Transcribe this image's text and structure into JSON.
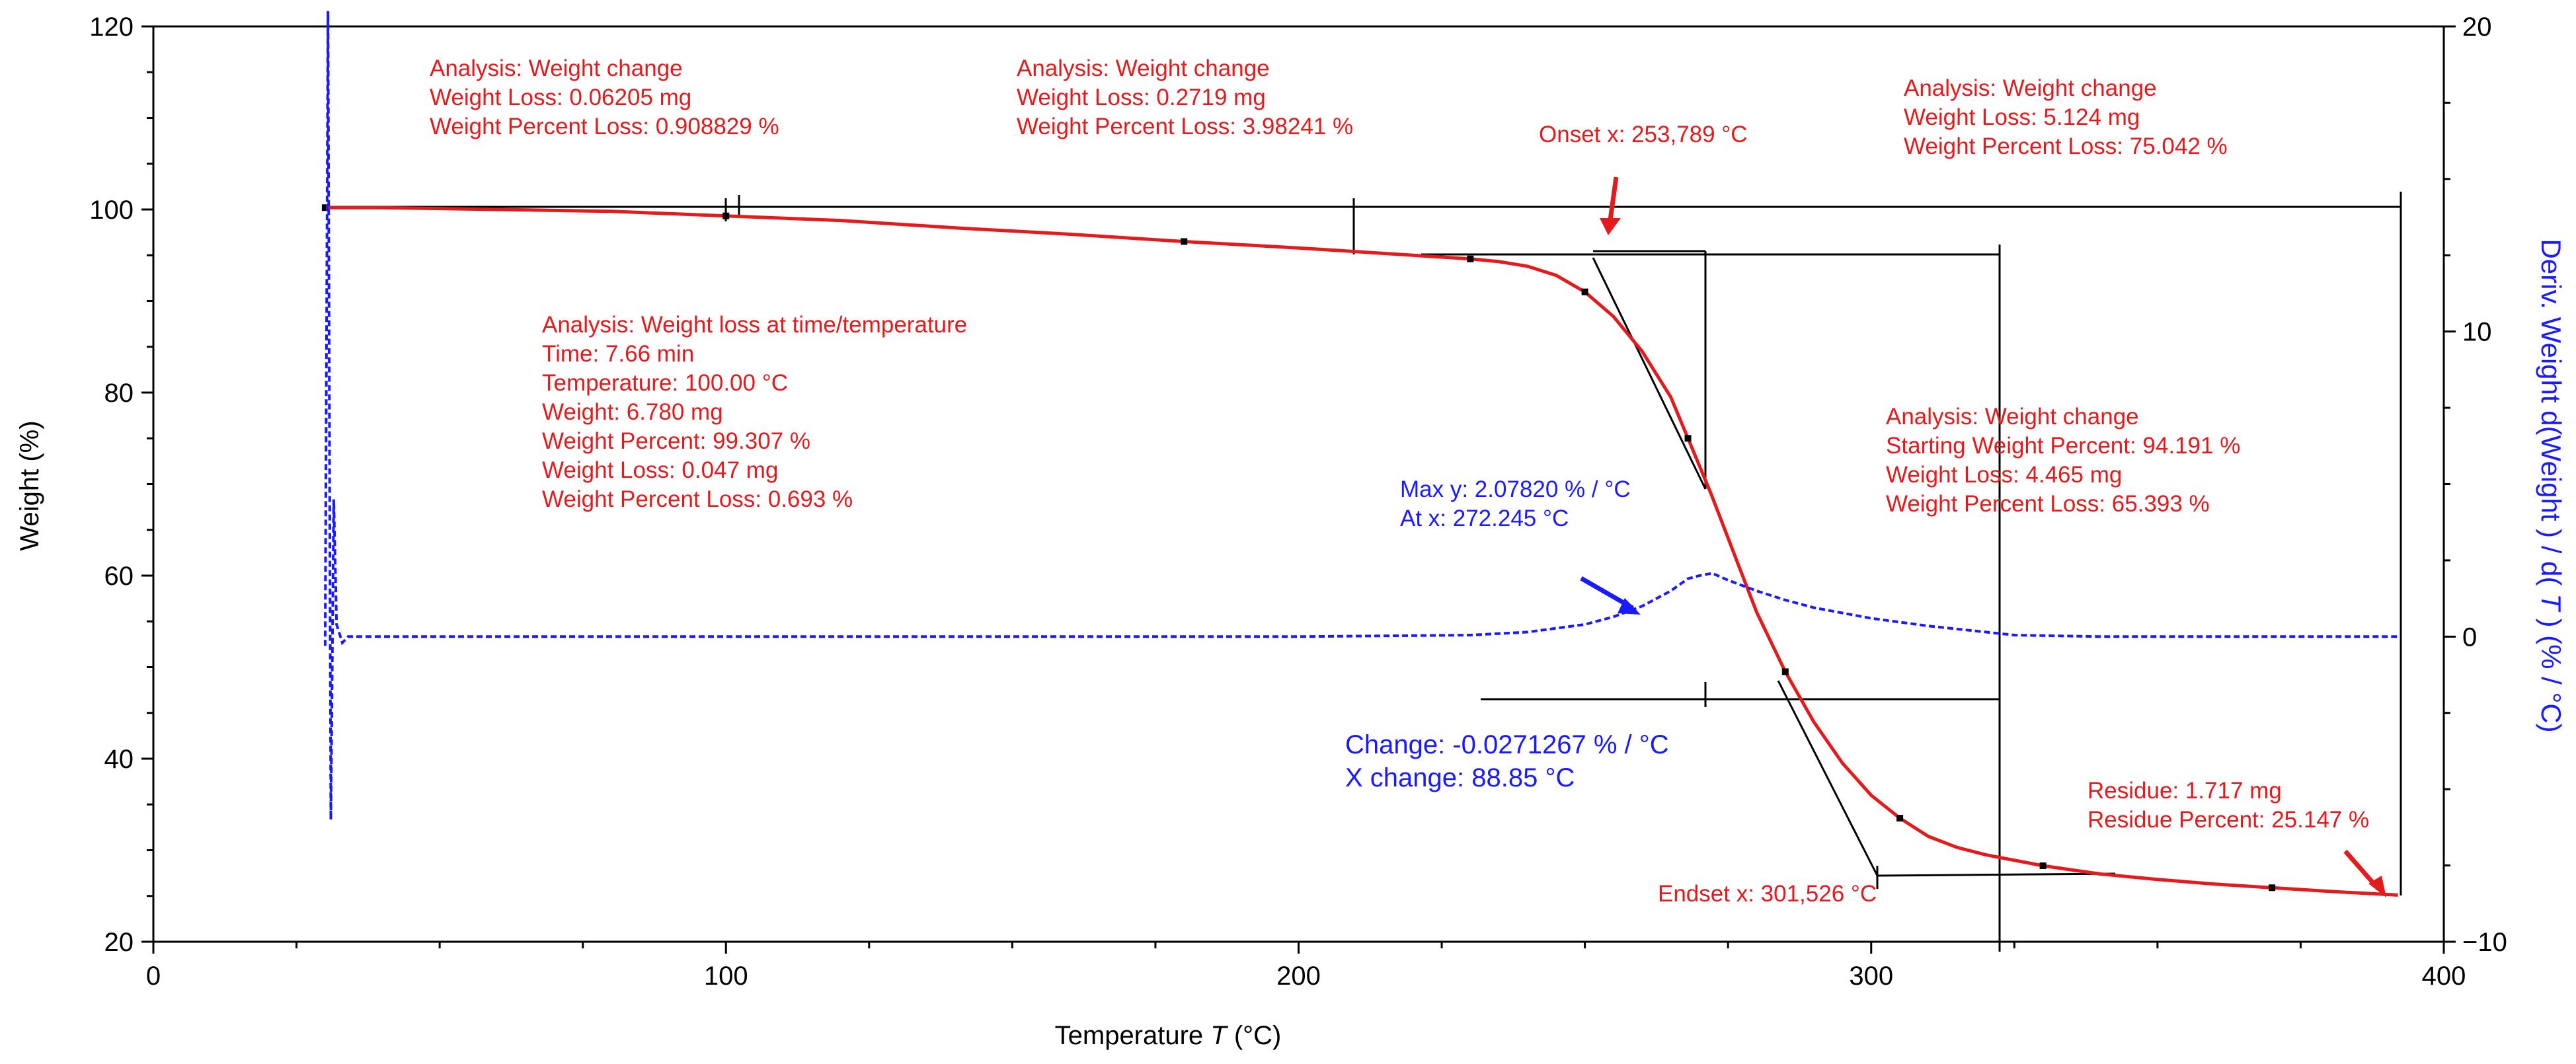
{
  "chart_data": {
    "type": "line",
    "title": "",
    "xlabel_prefix": "Temperature ",
    "xlabel_var": "T",
    "xlabel_suffix": " (°C)",
    "ylabel": "Weight (%)",
    "y2label_prefix": "Deriv. Weight d(Weight ) / d( ",
    "y2label_var": "T",
    "y2label_suffix": " ) (% / °C)",
    "xlim": [
      0,
      400
    ],
    "ylim": [
      20,
      120
    ],
    "y2lim": [
      -10,
      20
    ],
    "x_ticks": [
      "0",
      "100",
      "200",
      "300",
      "400"
    ],
    "y_ticks": [
      "20",
      "40",
      "60",
      "80",
      "100",
      "120"
    ],
    "y2_ticks": [
      "−10",
      "0",
      "10",
      "20"
    ],
    "colors": {
      "weight": "#e41a1c",
      "deriv": "#1a1aff",
      "construct": "#000000"
    },
    "series": [
      {
        "name": "Weight",
        "axis": "left",
        "x": [
          30,
          40,
          60,
          80,
          100,
          120,
          140,
          160,
          180,
          200,
          210,
          220,
          230,
          235,
          240,
          245,
          250,
          255,
          260,
          265,
          268,
          272,
          276,
          280,
          285,
          290,
          295,
          300,
          305,
          310,
          315,
          320,
          330,
          340,
          350,
          360,
          370,
          380,
          392
        ],
        "values": [
          100.2,
          100.2,
          100.0,
          99.8,
          99.3,
          98.8,
          98.0,
          97.3,
          96.5,
          95.8,
          95.4,
          95.0,
          94.6,
          94.3,
          93.8,
          92.8,
          91.0,
          88.3,
          84.5,
          79.5,
          75.0,
          69.0,
          62.5,
          56.0,
          49.5,
          44.0,
          39.5,
          36.0,
          33.5,
          31.5,
          30.3,
          29.5,
          28.3,
          27.4,
          26.8,
          26.3,
          25.9,
          25.5,
          25.1
        ]
      },
      {
        "name": "Deriv. Weight",
        "axis": "right",
        "x": [
          30,
          30.5,
          31,
          31.5,
          32,
          33,
          34,
          40,
          100,
          200,
          230,
          240,
          250,
          255,
          260,
          265,
          268,
          270,
          272.245,
          275,
          280,
          285,
          290,
          300,
          310,
          320,
          325,
          340,
          392
        ],
        "values": [
          -0.3,
          20.5,
          -6.0,
          4.5,
          0.4,
          -0.2,
          0,
          0,
          0,
          0,
          0.05,
          0.15,
          0.4,
          0.65,
          1.0,
          1.5,
          1.9,
          2.0,
          2.078,
          1.85,
          1.5,
          1.2,
          0.95,
          0.6,
          0.35,
          0.15,
          0.05,
          0,
          0
        ]
      }
    ],
    "annotations": [
      {
        "id": "wc1",
        "color": "red",
        "lines": [
          "Analysis: Weight change",
          "Weight Loss: 0.06205 mg",
          "Weight Percent Loss: 0.908829 %"
        ]
      },
      {
        "id": "wc2",
        "color": "red",
        "lines": [
          "Analysis: Weight change",
          "Weight Loss: 0.2719 mg",
          "Weight Percent Loss: 3.98241 %"
        ]
      },
      {
        "id": "onset",
        "color": "red",
        "lines": [
          "Onset x: 253,789 °C"
        ]
      },
      {
        "id": "wc3",
        "color": "red",
        "lines": [
          "Analysis: Weight change",
          "Weight Loss: 5.124 mg",
          "Weight Percent Loss: 75.042 %"
        ]
      },
      {
        "id": "wlt",
        "color": "red",
        "lines": [
          "Analysis: Weight loss at time/temperature",
          "Time: 7.66 min",
          "Temperature: 100.00 °C",
          "Weight: 6.780 mg",
          "Weight Percent: 99.307 %",
          "Weight Loss: 0.047 mg",
          "Weight Percent Loss: 0.693 %"
        ]
      },
      {
        "id": "wc4",
        "color": "red",
        "lines": [
          "Analysis: Weight change",
          "Starting Weight Percent: 94.191 %",
          "Weight Loss: 4.465 mg",
          "Weight Percent Loss: 65.393 %"
        ]
      },
      {
        "id": "maxy",
        "color": "blue",
        "lines": [
          "Max y: 2.07820 % / °C",
          "At x: 272.245 °C"
        ]
      },
      {
        "id": "change",
        "color": "blue",
        "lines": [
          "Change: -0.0271267 % / °C",
          "X change: 88.85 °C"
        ]
      },
      {
        "id": "residue",
        "color": "red",
        "lines": [
          "Residue: 1.717 mg",
          "Residue Percent: 25.147 %"
        ]
      },
      {
        "id": "endset",
        "color": "red",
        "lines": [
          "Endset x: 301,526 °C"
        ]
      }
    ]
  }
}
